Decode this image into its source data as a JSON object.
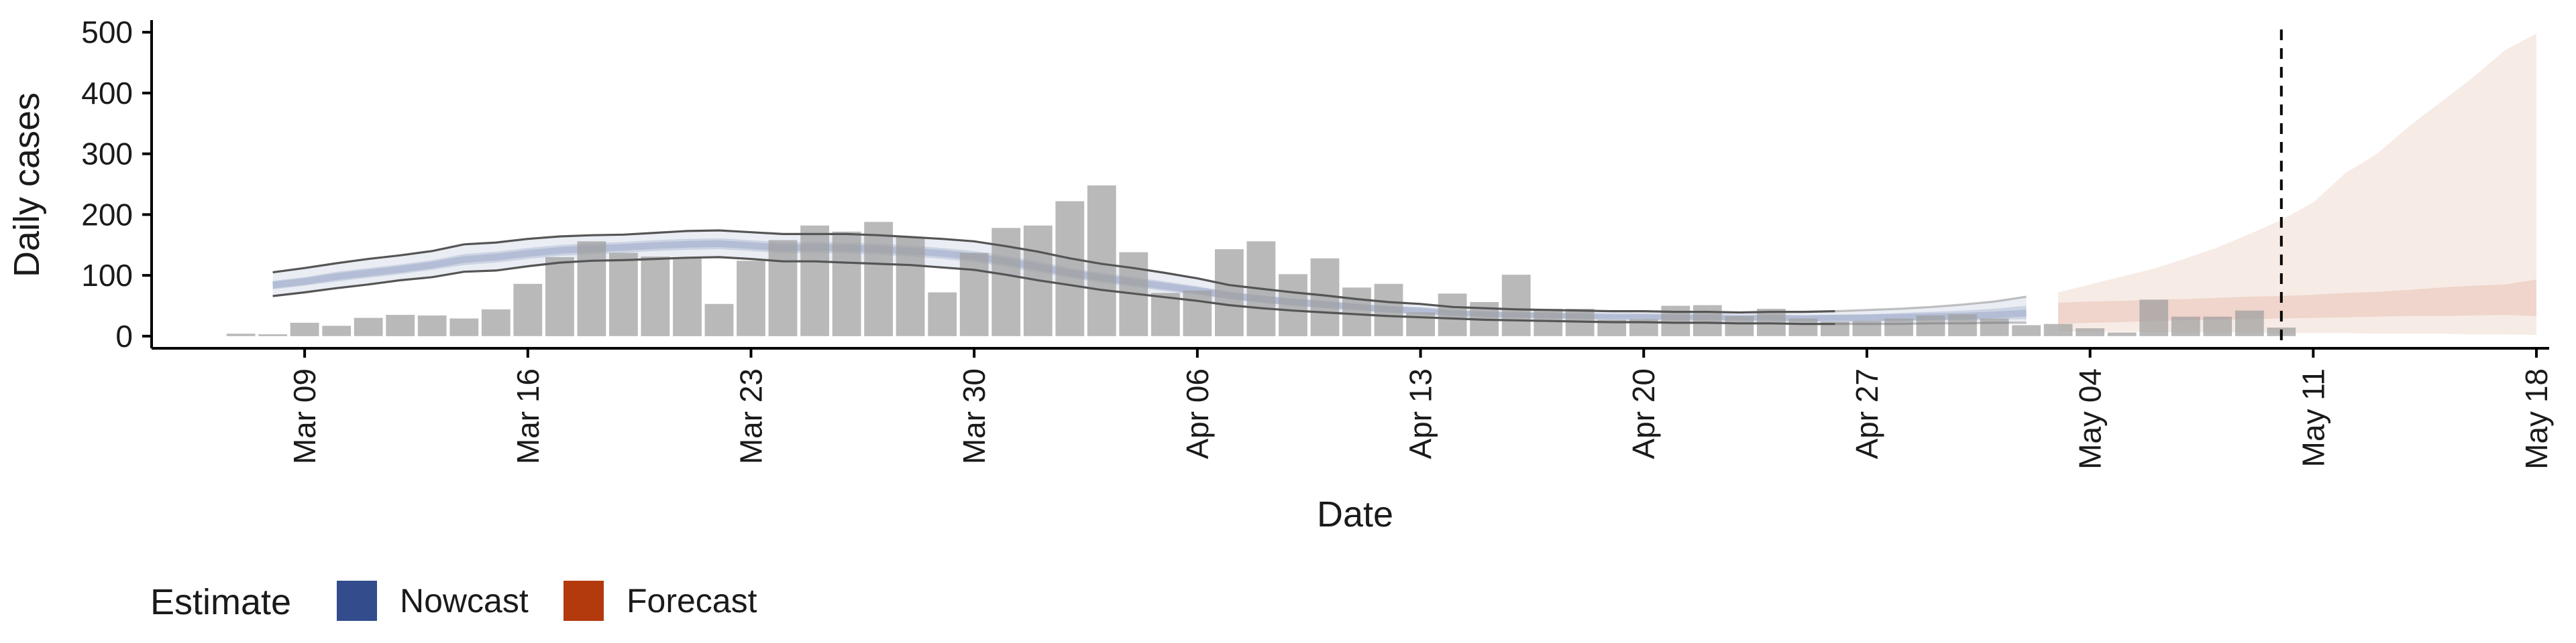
{
  "chart_data": {
    "type": "bar",
    "title": "",
    "xlabel": "Date",
    "ylabel": "Daily cases",
    "ylim": [
      -20,
      520
    ],
    "yticks": [
      0,
      100,
      200,
      300,
      400,
      500
    ],
    "x_start": "2020-03-07",
    "xlim_days": [
      -2.8,
      72.4
    ],
    "xticks": [
      {
        "label": "Mar 09",
        "day": 2
      },
      {
        "label": "Mar 16",
        "day": 9
      },
      {
        "label": "Mar 23",
        "day": 16
      },
      {
        "label": "Mar 30",
        "day": 23
      },
      {
        "label": "Apr 06",
        "day": 30
      },
      {
        "label": "Apr 13",
        "day": 37
      },
      {
        "label": "Apr 20",
        "day": 44
      },
      {
        "label": "Apr 27",
        "day": 51
      },
      {
        "label": "May 04",
        "day": 58
      },
      {
        "label": "May 11",
        "day": 65
      },
      {
        "label": "May 18",
        "day": 72
      }
    ],
    "grid": false,
    "legend_position": "bottom-left",
    "legend_title": "Estimate",
    "legend": [
      {
        "label": "Nowcast",
        "color": "#334d8c"
      },
      {
        "label": "Forecast",
        "color": "#b33a0c"
      }
    ],
    "bar_color": "#9e9e9e",
    "reported_cases": [
      4,
      3,
      22,
      17,
      30,
      35,
      34,
      29,
      44,
      86,
      130,
      156,
      137,
      131,
      130,
      53,
      124,
      158,
      182,
      172,
      188,
      163,
      72,
      137,
      178,
      182,
      222,
      248,
      138,
      71,
      75,
      143,
      156,
      102,
      128,
      80,
      86,
      39,
      70,
      56,
      101,
      45,
      45,
      27,
      28,
      50,
      51,
      33,
      45,
      29,
      24,
      25,
      29,
      34,
      36,
      29,
      18,
      20,
      13,
      6,
      60,
      32,
      32,
      42,
      14
    ],
    "nowcast": {
      "color": "#334d8c",
      "start_day": 1,
      "median": [
        84,
        90,
        98,
        104,
        110,
        117,
        126,
        130,
        136,
        141,
        144,
        146,
        149,
        151,
        152,
        149,
        145,
        146,
        145,
        143,
        140,
        136,
        131,
        123,
        114,
        104,
        96,
        89,
        82,
        75,
        67,
        61,
        56,
        52,
        48,
        44,
        42,
        38,
        36,
        35,
        34,
        33,
        32,
        32,
        31,
        31,
        30,
        30,
        29,
        30,
        30,
        31,
        32,
        33,
        35,
        38
      ],
      "ci50_lower": [
        77,
        83,
        90,
        96,
        102,
        109,
        117,
        121,
        127,
        132,
        135,
        137,
        140,
        142,
        143,
        140,
        136,
        137,
        136,
        134,
        131,
        127,
        122,
        114,
        105,
        96,
        88,
        81,
        74,
        68,
        61,
        55,
        50,
        46,
        43,
        39,
        37,
        34,
        32,
        31,
        30,
        29,
        28,
        28,
        27,
        27,
        26,
        26,
        25,
        25,
        25,
        25,
        26,
        26,
        27,
        28
      ],
      "ci50_upper": [
        91,
        97,
        106,
        112,
        118,
        125,
        135,
        139,
        145,
        150,
        153,
        155,
        158,
        160,
        161,
        158,
        154,
        155,
        154,
        152,
        149,
        145,
        140,
        132,
        123,
        112,
        104,
        97,
        90,
        82,
        73,
        67,
        62,
        58,
        53,
        49,
        47,
        42,
        40,
        39,
        38,
        37,
        36,
        36,
        35,
        35,
        34,
        35,
        34,
        35,
        36,
        38,
        40,
        42,
        45,
        50
      ],
      "ci90_lower": [
        66,
        72,
        79,
        85,
        92,
        97,
        106,
        108,
        115,
        121,
        124,
        125,
        127,
        129,
        130,
        127,
        123,
        123,
        121,
        119,
        117,
        113,
        109,
        101,
        92,
        84,
        76,
        70,
        64,
        58,
        51,
        46,
        42,
        39,
        36,
        33,
        31,
        29,
        27,
        26,
        25,
        24,
        23,
        23,
        22,
        22,
        21,
        21,
        20,
        20,
        20,
        20,
        21,
        21,
        22,
        22
      ],
      "ci90_upper": [
        105,
        112,
        120,
        127,
        133,
        140,
        151,
        154,
        160,
        164,
        166,
        167,
        170,
        173,
        174,
        171,
        168,
        168,
        168,
        166,
        163,
        160,
        156,
        148,
        139,
        128,
        119,
        112,
        104,
        95,
        84,
        78,
        72,
        67,
        61,
        56,
        53,
        48,
        46,
        44,
        43,
        42,
        41,
        41,
        40,
        40,
        39,
        40,
        40,
        41,
        43,
        45,
        48,
        52,
        57,
        65
      ]
    },
    "forecast": {
      "color": "#b33a0c",
      "start_day": 57,
      "ci50_lower": [
        20,
        22,
        23,
        25,
        26,
        27,
        28,
        29,
        30,
        31,
        32,
        33,
        33,
        34,
        35,
        33
      ],
      "ci50_upper": [
        55,
        57,
        58,
        60,
        61,
        63,
        65,
        66,
        68,
        71,
        73,
        76,
        80,
        83,
        85,
        93
      ],
      "ci90_lower": [
        8,
        7,
        7,
        7,
        6,
        6,
        6,
        5,
        5,
        5,
        4,
        4,
        4,
        3,
        3,
        2
      ],
      "ci90_upper": [
        72,
        85,
        98,
        111,
        128,
        146,
        168,
        191,
        220,
        268,
        300,
        345,
        385,
        425,
        470,
        498
      ]
    },
    "vline_day": 64
  }
}
